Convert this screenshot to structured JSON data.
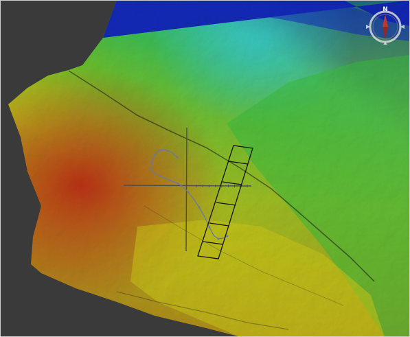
{
  "viewer": {
    "view_type": "3D bathymetry / elevation surface",
    "background_color": "#3a3a3a",
    "colormap": [
      "#1020d0",
      "#30e0e8",
      "#30e060",
      "#9be820",
      "#f2f21a",
      "#f8a010",
      "#ee3018",
      "#c8141c"
    ]
  },
  "compass": {
    "north_label": "N",
    "needle_color": "#c0392b",
    "icon": "compass-rose-icon"
  },
  "profile_overlay": {
    "axis_color": "#555555",
    "curve_color": "#6878a8",
    "box_color": "#111111",
    "tick_labels": [
      "",
      "",
      "",
      "",
      "",
      "",
      ""
    ]
  }
}
